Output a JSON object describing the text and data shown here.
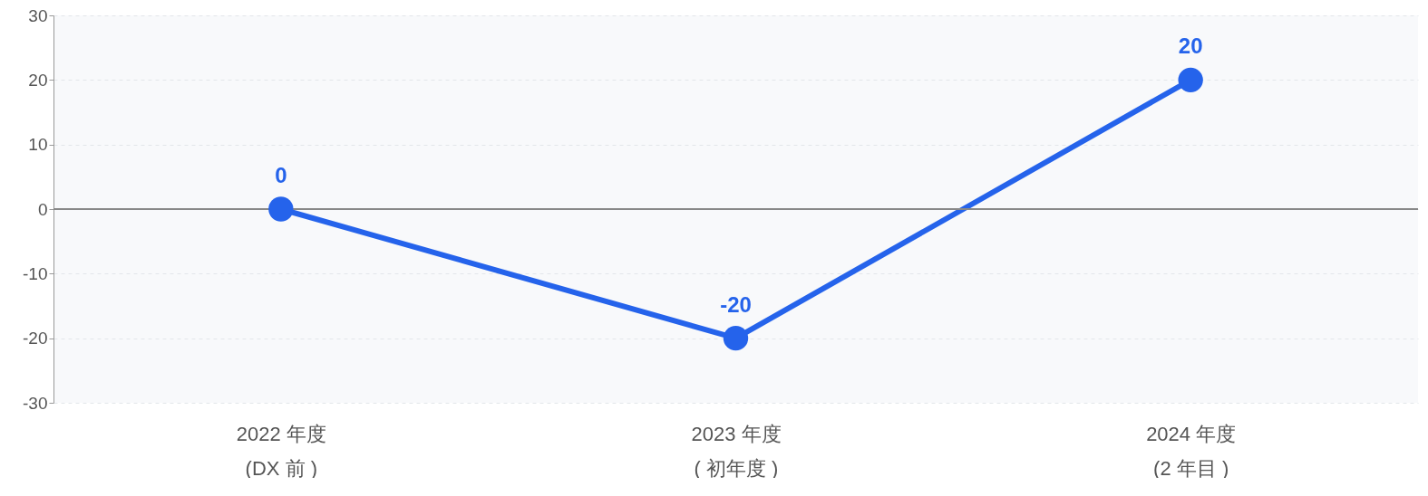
{
  "chart_data": {
    "type": "line",
    "categories": [
      "2022 年度\n(DX 前 )",
      "2023 年度\n( 初年度 )",
      "2024 年度\n(2 年目 )"
    ],
    "series": [
      {
        "color": "#2563eb",
        "values": [
          0,
          -20,
          20
        ]
      }
    ],
    "ylim": [
      -30,
      30
    ],
    "yticks": [
      -30,
      -20,
      -10,
      0,
      10,
      20,
      30
    ],
    "grid": "y",
    "marker": "circle",
    "data_labels": true,
    "legend": false
  }
}
